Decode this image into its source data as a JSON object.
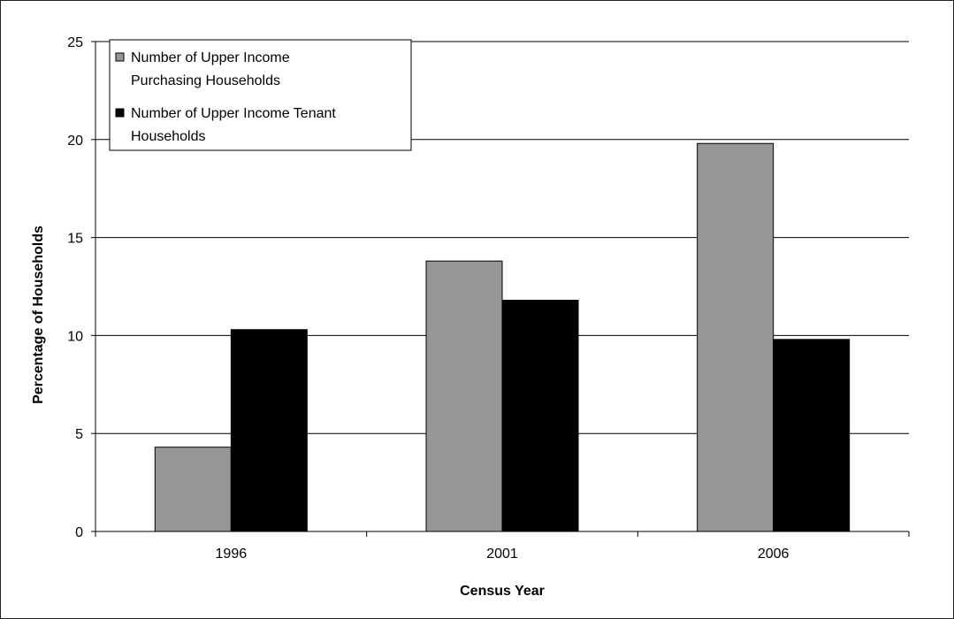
{
  "chart_data": {
    "type": "bar",
    "title": "",
    "xlabel": "Census Year",
    "ylabel": "Percentage of Households",
    "categories": [
      "1996",
      "2001",
      "2006"
    ],
    "ylim": [
      0,
      25
    ],
    "yticks": [
      0,
      5,
      10,
      15,
      20,
      25
    ],
    "grid": true,
    "legend_position": "top-left",
    "series": [
      {
        "name": "Number of Upper Income Purchasing Households",
        "legend_lines": [
          "Number of Upper Income",
          "Purchasing Households"
        ],
        "color": "#969696",
        "values": [
          4.3,
          13.8,
          19.8
        ]
      },
      {
        "name": "Number of Upper Income Tenant Households",
        "legend_lines": [
          "Number of Upper Income Tenant",
          "Households"
        ],
        "color": "#000000",
        "values": [
          10.3,
          11.8,
          9.8
        ]
      }
    ]
  }
}
